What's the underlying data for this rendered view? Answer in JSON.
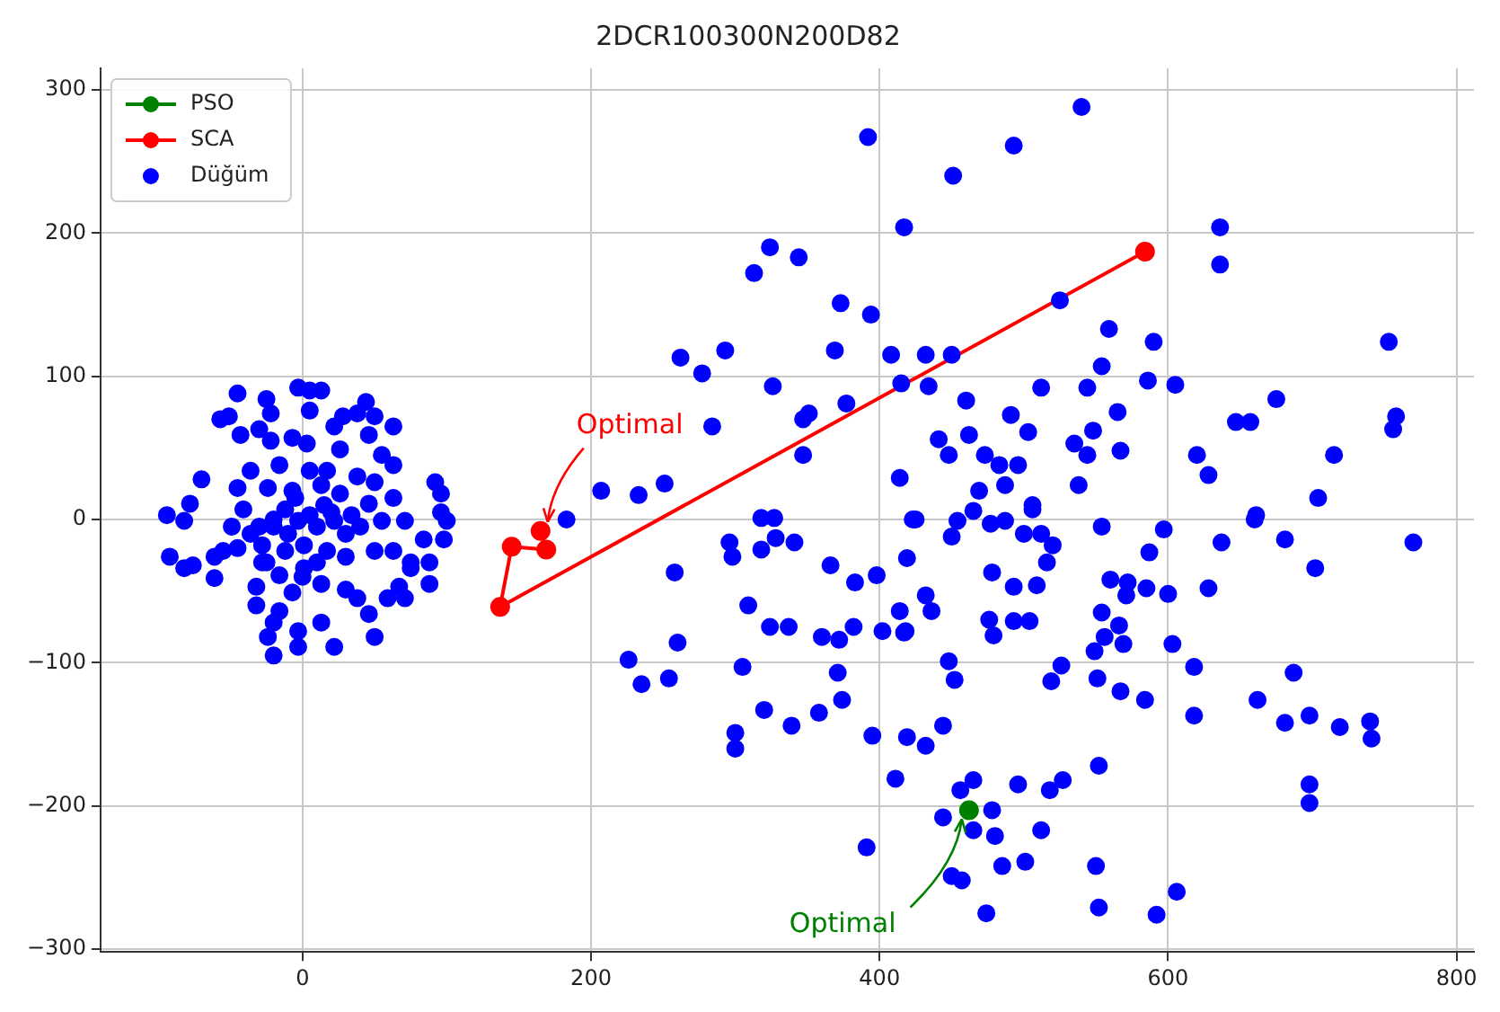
{
  "chart_data": {
    "type": "scatter",
    "title": "2DCR100300N200D82",
    "xlim": [
      -140,
      812
    ],
    "ylim": [
      -302,
      315
    ],
    "xticks": [
      0,
      200,
      400,
      600,
      800
    ],
    "yticks": [
      -300,
      -200,
      -100,
      0,
      100,
      200,
      300
    ],
    "grid": true,
    "legend": "top left",
    "marker": "circle",
    "series": [
      {
        "name": "PSO",
        "type": "line",
        "color": "#008000",
        "x": [
          462
        ],
        "values": [
          -203
        ]
      },
      {
        "name": "SCA",
        "type": "line",
        "color": "#ff0000",
        "x": [
          584,
          137,
          145,
          169,
          165
        ],
        "values": [
          187,
          -61,
          -19,
          -21,
          -8
        ]
      },
      {
        "name": "Düğüm",
        "type": "scatter",
        "color": "#0000ff",
        "x": [
          -45,
          -25,
          -22,
          -3,
          5,
          13,
          5,
          -57,
          -51,
          -43,
          -30,
          -22,
          -7,
          3,
          22,
          28,
          38,
          44,
          50,
          46,
          63,
          55,
          63,
          26,
          -70,
          -36,
          -16,
          5,
          17,
          38,
          50,
          63,
          92,
          96,
          -78,
          -94,
          -82,
          -45,
          -24,
          -7,
          13,
          26,
          46,
          96,
          100,
          -49,
          -36,
          -20,
          -3,
          5,
          22,
          34,
          55,
          71,
          84,
          98,
          -92,
          -82,
          -76,
          -61,
          -55,
          -45,
          -28,
          -12,
          1,
          17,
          30,
          50,
          63,
          75,
          88,
          -61,
          -32,
          -16,
          1,
          13,
          30,
          38,
          46,
          67,
          71,
          88,
          -32,
          -16,
          -20,
          13,
          -24,
          -3,
          22,
          50,
          -20,
          -3,
          59,
          75,
          -41,
          -12,
          -28,
          -7,
          -30,
          -20,
          -10,
          10,
          20,
          30,
          40,
          -5,
          15,
          -25,
          0,
          10,
          392,
          451,
          417,
          324,
          344,
          313,
          373,
          394,
          262,
          293,
          277,
          369,
          408,
          432,
          450,
          326,
          377,
          415,
          434,
          347,
          351,
          284,
          347,
          414,
          207,
          233,
          251,
          441,
          448,
          460,
          462,
          183,
          540,
          493,
          636,
          636,
          525,
          559,
          590,
          554,
          586,
          605,
          512,
          544,
          491,
          503,
          565,
          548,
          535,
          567,
          544,
          473,
          483,
          496,
          487,
          538,
          506,
          469,
          675,
          647,
          657,
          620,
          628,
          715,
          704,
          753,
          758,
          756,
          661,
          770,
          258,
          226,
          235,
          254,
          260,
          296,
          298,
          318,
          327,
          318,
          328,
          341,
          309,
          324,
          337,
          305,
          320,
          339,
          300,
          300,
          366,
          383,
          398,
          360,
          372,
          382,
          371,
          374,
          358,
          395,
          419,
          411,
          391,
          402,
          417,
          414,
          419,
          423,
          425,
          450,
          454,
          465,
          477,
          487,
          500,
          512,
          520,
          516,
          506,
          478,
          493,
          509,
          432,
          436,
          418,
          476,
          479,
          493,
          504,
          554,
          597,
          587,
          560,
          572,
          585,
          571,
          600,
          628,
          660,
          681,
          637,
          702,
          554,
          566,
          556,
          569,
          549,
          603,
          448,
          452,
          526,
          519,
          551,
          567,
          584,
          618,
          618,
          662,
          687,
          681,
          698,
          719,
          740,
          741,
          432,
          444,
          456,
          465,
          444,
          478,
          465,
          480,
          496,
          518,
          527,
          552,
          512,
          485,
          501,
          450,
          457,
          474,
          550,
          552,
          592,
          606,
          698,
          698
        ],
        "values": [
          88,
          84,
          74,
          92,
          90,
          90,
          76,
          70,
          72,
          59,
          63,
          55,
          57,
          53,
          65,
          72,
          74,
          82,
          72,
          59,
          65,
          45,
          38,
          49,
          28,
          34,
          38,
          34,
          34,
          30,
          26,
          15,
          26,
          18,
          11,
          3,
          -1,
          22,
          22,
          20,
          24,
          18,
          11,
          5,
          -1,
          -5,
          -10,
          -5,
          -1,
          3,
          -1,
          3,
          -1,
          -1,
          -14,
          -14,
          -26,
          -34,
          -32,
          -26,
          -22,
          -20,
          -18,
          -22,
          -18,
          -22,
          -26,
          -22,
          -22,
          -30,
          -30,
          -41,
          -47,
          -39,
          -34,
          -45,
          -49,
          -55,
          -66,
          -47,
          -55,
          -45,
          -60,
          -64,
          -72,
          -72,
          -82,
          -78,
          -89,
          -82,
          -95,
          -89,
          -55,
          -34,
          7,
          7,
          -30,
          -51,
          -5,
          0,
          -10,
          -5,
          5,
          -10,
          -5,
          15,
          10,
          -30,
          -40,
          -30,
          267,
          240,
          204,
          190,
          183,
          172,
          151,
          143,
          113,
          118,
          102,
          118,
          115,
          115,
          115,
          93,
          81,
          95,
          93,
          70,
          74,
          65,
          45,
          29,
          20,
          17,
          25,
          56,
          45,
          83,
          59,
          0,
          288,
          261,
          204,
          178,
          153,
          133,
          124,
          107,
          97,
          94,
          92,
          92,
          73,
          61,
          75,
          62,
          53,
          48,
          45,
          45,
          38,
          38,
          24,
          24,
          10,
          20,
          84,
          68,
          68,
          45,
          31,
          45,
          15,
          124,
          72,
          63,
          3,
          -16,
          -37,
          -98,
          -115,
          -111,
          -86,
          -16,
          -26,
          1,
          1,
          -21,
          -13,
          -16,
          -60,
          -75,
          -75,
          -103,
          -133,
          -144,
          -149,
          -160,
          -32,
          -44,
          -39,
          -82,
          -84,
          -75,
          -107,
          -126,
          -135,
          -151,
          -152,
          -181,
          -229,
          -78,
          -79,
          -64,
          -27,
          0,
          0,
          -12,
          -1,
          6,
          -3,
          -1,
          -10,
          -10,
          -18,
          -30,
          7,
          -37,
          -47,
          -46,
          -53,
          -64,
          -78,
          -70,
          -81,
          -71,
          -71,
          -5,
          -7,
          -23,
          -42,
          -44,
          -48,
          -53,
          -52,
          -48,
          0,
          -14,
          -16,
          -34,
          -65,
          -74,
          -82,
          -87,
          -92,
          -87,
          -99,
          -112,
          -102,
          -113,
          -111,
          -120,
          -126,
          -103,
          -137,
          -126,
          -107,
          -142,
          -137,
          -145,
          -141,
          -153,
          -158,
          -144,
          -189,
          -182,
          -208,
          -203,
          -217,
          -221,
          -185,
          -189,
          -182,
          -172,
          -217,
          -242,
          -239,
          -249,
          -252,
          -275,
          -242,
          -271,
          -276,
          -260,
          -185,
          -198
        ]
      }
    ],
    "annotations": [
      {
        "text": "Optimal",
        "x": 165,
        "y": -8
      },
      {
        "text": "Optimal",
        "x": 462,
        "y": -203
      }
    ]
  }
}
